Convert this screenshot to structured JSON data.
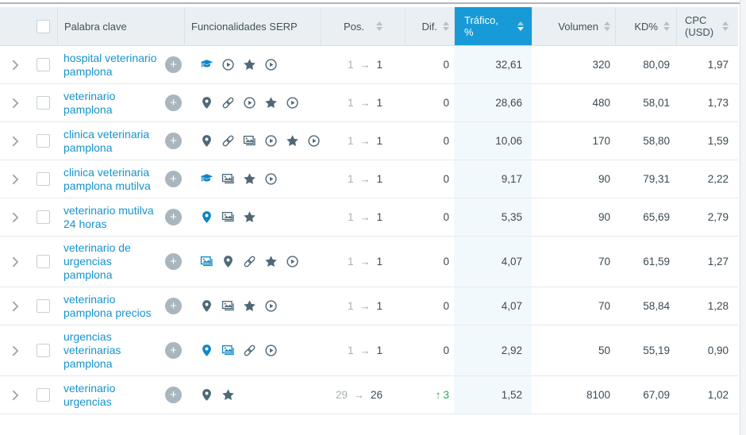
{
  "colors": {
    "active_header_bg": "#189ad6",
    "keyword_link": "#1693cd",
    "icon_dark": "#4e6878",
    "icon_blue": "#0d87c8",
    "diff_up_green": "#2aa75c",
    "traffic_cell_bg": "#f2f9fd",
    "header_bg": "#e9eff2"
  },
  "sort": {
    "active_column": "Tráfico, %",
    "direction": "desc"
  },
  "header": {
    "columns": [
      {
        "key": "keyword",
        "label": "Palabra clave",
        "sortable": false,
        "active": false
      },
      {
        "key": "serp",
        "label": "Funcionalidades SERP",
        "sortable": false,
        "active": false
      },
      {
        "key": "pos",
        "label": "Pos.",
        "sortable": true,
        "active": false
      },
      {
        "key": "dif",
        "label": "Dif.",
        "sortable": true,
        "active": false
      },
      {
        "key": "traffic",
        "label": "Tráfico, %",
        "sortable": true,
        "active": true
      },
      {
        "key": "volume",
        "label": "Volumen",
        "sortable": true,
        "active": false
      },
      {
        "key": "kd",
        "label": "KD%",
        "sortable": true,
        "active": false
      },
      {
        "key": "cpc",
        "label": "CPC (USD)",
        "sortable": true,
        "active": false
      }
    ]
  },
  "rows": [
    {
      "keyword": "hospital veterinario pamplona",
      "serp_features": [
        {
          "name": "knowledge-panel",
          "glyph": "graduation-cap",
          "color": "blue"
        },
        {
          "name": "video",
          "glyph": "play-circle",
          "color": "dark"
        },
        {
          "name": "reviews",
          "glyph": "star",
          "color": "dark"
        },
        {
          "name": "featured-video",
          "glyph": "play-circle",
          "color": "dark"
        }
      ],
      "pos_old": "1",
      "pos_new": "1",
      "dif": "0",
      "dif_trend": "none",
      "traffic": "32,61",
      "volume": "320",
      "kd": "80,09",
      "cpc": "1,97"
    },
    {
      "keyword": "veterinario pamplona",
      "serp_features": [
        {
          "name": "local-pack",
          "glyph": "pin",
          "color": "dark"
        },
        {
          "name": "sitelinks",
          "glyph": "link",
          "color": "dark"
        },
        {
          "name": "video",
          "glyph": "play-circle",
          "color": "dark"
        },
        {
          "name": "reviews",
          "glyph": "star",
          "color": "dark"
        },
        {
          "name": "featured-video",
          "glyph": "play-circle",
          "color": "dark"
        }
      ],
      "pos_old": "1",
      "pos_new": "1",
      "dif": "0",
      "dif_trend": "none",
      "traffic": "28,66",
      "volume": "480",
      "kd": "58,01",
      "cpc": "1,73"
    },
    {
      "keyword": "clinica veterinaria pamplona",
      "serp_features": [
        {
          "name": "local-pack",
          "glyph": "pin",
          "color": "dark"
        },
        {
          "name": "sitelinks",
          "glyph": "link",
          "color": "dark"
        },
        {
          "name": "image-pack",
          "glyph": "photos",
          "color": "dark"
        },
        {
          "name": "video",
          "glyph": "play-circle",
          "color": "dark"
        },
        {
          "name": "reviews",
          "glyph": "star",
          "color": "dark"
        },
        {
          "name": "featured-video",
          "glyph": "play-circle",
          "color": "dark"
        }
      ],
      "pos_old": "1",
      "pos_new": "1",
      "dif": "0",
      "dif_trend": "none",
      "traffic": "10,06",
      "volume": "170",
      "kd": "58,80",
      "cpc": "1,59"
    },
    {
      "keyword": "clinica veterinaria pamplona mutilva",
      "serp_features": [
        {
          "name": "knowledge-panel",
          "glyph": "graduation-cap",
          "color": "blue"
        },
        {
          "name": "image-pack",
          "glyph": "photos",
          "color": "dark"
        },
        {
          "name": "reviews",
          "glyph": "star",
          "color": "dark"
        },
        {
          "name": "video",
          "glyph": "play-circle",
          "color": "dark"
        }
      ],
      "pos_old": "1",
      "pos_new": "1",
      "dif": "0",
      "dif_trend": "none",
      "traffic": "9,17",
      "volume": "90",
      "kd": "79,31",
      "cpc": "2,22"
    },
    {
      "keyword": "veterinario mutilva 24 horas",
      "serp_features": [
        {
          "name": "local-pack",
          "glyph": "pin",
          "color": "blue"
        },
        {
          "name": "image-pack",
          "glyph": "photos",
          "color": "dark"
        },
        {
          "name": "reviews",
          "glyph": "star",
          "color": "dark"
        }
      ],
      "pos_old": "1",
      "pos_new": "1",
      "dif": "0",
      "dif_trend": "none",
      "traffic": "5,35",
      "volume": "90",
      "kd": "65,69",
      "cpc": "2,79"
    },
    {
      "keyword": "veterinario de urgencias pamplona",
      "serp_features": [
        {
          "name": "image-pack",
          "glyph": "photos",
          "color": "blue"
        },
        {
          "name": "local-pack",
          "glyph": "pin",
          "color": "dark"
        },
        {
          "name": "sitelinks",
          "glyph": "link",
          "color": "dark"
        },
        {
          "name": "reviews",
          "glyph": "star",
          "color": "dark"
        },
        {
          "name": "video",
          "glyph": "play-circle",
          "color": "dark"
        }
      ],
      "pos_old": "1",
      "pos_new": "1",
      "dif": "0",
      "dif_trend": "none",
      "traffic": "4,07",
      "volume": "70",
      "kd": "61,59",
      "cpc": "1,27"
    },
    {
      "keyword": "veterinario pamplona precios",
      "serp_features": [
        {
          "name": "local-pack",
          "glyph": "pin",
          "color": "dark"
        },
        {
          "name": "image-pack",
          "glyph": "photos",
          "color": "dark"
        },
        {
          "name": "reviews",
          "glyph": "star",
          "color": "dark"
        },
        {
          "name": "video",
          "glyph": "play-circle",
          "color": "dark"
        }
      ],
      "pos_old": "1",
      "pos_new": "1",
      "dif": "0",
      "dif_trend": "none",
      "traffic": "4,07",
      "volume": "70",
      "kd": "58,84",
      "cpc": "1,28"
    },
    {
      "keyword": "urgencias veterinarias pamplona",
      "serp_features": [
        {
          "name": "local-pack",
          "glyph": "pin",
          "color": "blue"
        },
        {
          "name": "image-pack",
          "glyph": "photos",
          "color": "blue"
        },
        {
          "name": "sitelinks",
          "glyph": "link",
          "color": "dark"
        },
        {
          "name": "video",
          "glyph": "play-circle",
          "color": "dark"
        }
      ],
      "pos_old": "1",
      "pos_new": "1",
      "dif": "0",
      "dif_trend": "none",
      "traffic": "2,92",
      "volume": "50",
      "kd": "55,19",
      "cpc": "0,90"
    },
    {
      "keyword": "veterinario urgencias",
      "serp_features": [
        {
          "name": "local-pack",
          "glyph": "pin",
          "color": "dark"
        },
        {
          "name": "reviews",
          "glyph": "star",
          "color": "dark"
        }
      ],
      "pos_old": "29",
      "pos_new": "26",
      "dif": "3",
      "dif_trend": "up",
      "traffic": "1,52",
      "volume": "8100",
      "kd": "67,09",
      "cpc": "1,02"
    }
  ],
  "ui": {
    "plus_button_label": "+",
    "pos_arrow": "→",
    "dif_up_arrow": "↑"
  }
}
